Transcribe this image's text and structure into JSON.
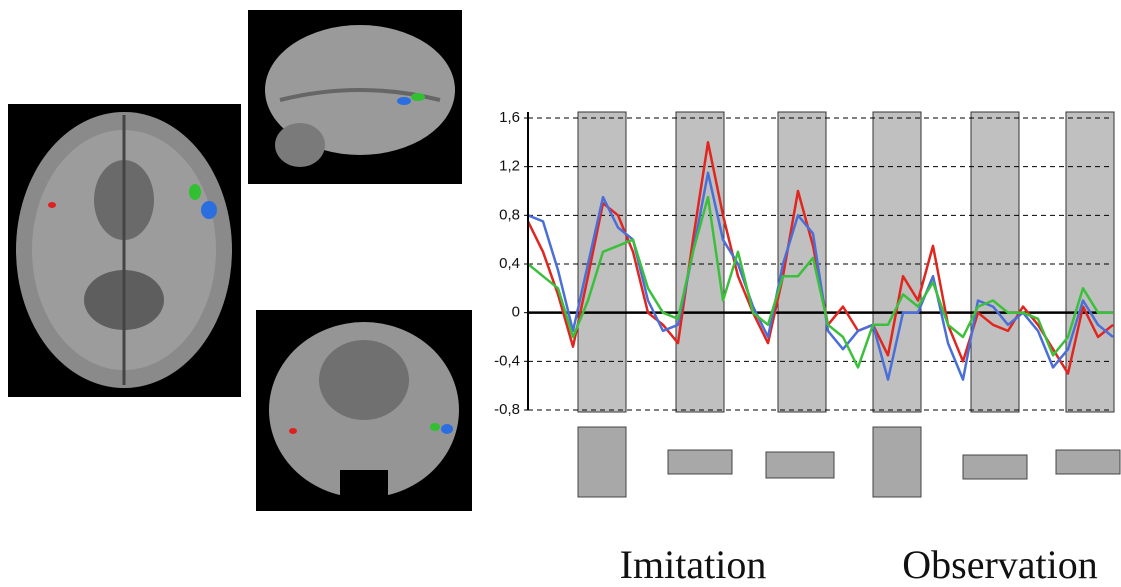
{
  "chart_data": {
    "type": "line",
    "categories": [
      null,
      null,
      null,
      null,
      null,
      null,
      null,
      null,
      null,
      null,
      null,
      null,
      null,
      null,
      null,
      null,
      null,
      null,
      null,
      null,
      null,
      null,
      null,
      null,
      null,
      null,
      null,
      null,
      null,
      null,
      null,
      null,
      null,
      null,
      null,
      null,
      null,
      null,
      null,
      null
    ],
    "series": [
      {
        "color": "#e0261e",
        "values": [
          0.75,
          0.5,
          0.15,
          -0.28,
          0.3,
          0.9,
          0.8,
          0.5,
          0.0,
          -0.1,
          -0.25,
          0.6,
          1.4,
          0.8,
          0.3,
          0.0,
          -0.25,
          0.3,
          1.0,
          0.55,
          -0.1,
          0.05,
          -0.15,
          -0.1,
          -0.35,
          0.3,
          0.1,
          0.55,
          -0.1,
          -0.4,
          0.0,
          -0.1,
          -0.15,
          0.05,
          -0.1,
          -0.3,
          -0.5,
          0.05,
          -0.2,
          -0.1
        ]
      },
      {
        "color": "#4a6fd8",
        "values": [
          0.8,
          0.75,
          0.35,
          -0.15,
          0.4,
          0.95,
          0.7,
          0.6,
          0.1,
          -0.15,
          -0.1,
          0.5,
          1.15,
          0.6,
          0.4,
          0.05,
          -0.2,
          0.4,
          0.8,
          0.65,
          -0.15,
          -0.3,
          -0.15,
          -0.1,
          -0.55,
          0.0,
          0.0,
          0.3,
          -0.25,
          -0.55,
          0.1,
          0.05,
          -0.1,
          0.0,
          -0.15,
          -0.45,
          -0.3,
          0.1,
          -0.1,
          -0.2
        ]
      },
      {
        "color": "#3cc03c",
        "values": [
          0.4,
          0.3,
          0.2,
          -0.2,
          0.1,
          0.5,
          0.55,
          0.6,
          0.2,
          0.0,
          -0.05,
          0.5,
          0.95,
          0.1,
          0.5,
          0.0,
          -0.1,
          0.3,
          0.3,
          0.45,
          -0.1,
          -0.2,
          -0.45,
          -0.1,
          -0.1,
          0.15,
          0.05,
          0.25,
          -0.1,
          -0.2,
          0.05,
          0.1,
          0.0,
          0.0,
          -0.05,
          -0.35,
          -0.2,
          0.2,
          0.0,
          0.0
        ]
      }
    ],
    "ylim": [
      -0.8,
      1.6
    ],
    "yticks": [
      {
        "value": 1.6,
        "label": "1,6"
      },
      {
        "value": 1.2,
        "label": "1,2"
      },
      {
        "value": 0.8,
        "label": "0,8"
      },
      {
        "value": 0.4,
        "label": "0,4"
      },
      0,
      {
        "value": -0.4,
        "label": "-0,4"
      },
      {
        "value": -0.8,
        "label": "-0,8"
      }
    ],
    "grid": true,
    "annotations": [
      "Imitation",
      "Observation"
    ]
  }
}
